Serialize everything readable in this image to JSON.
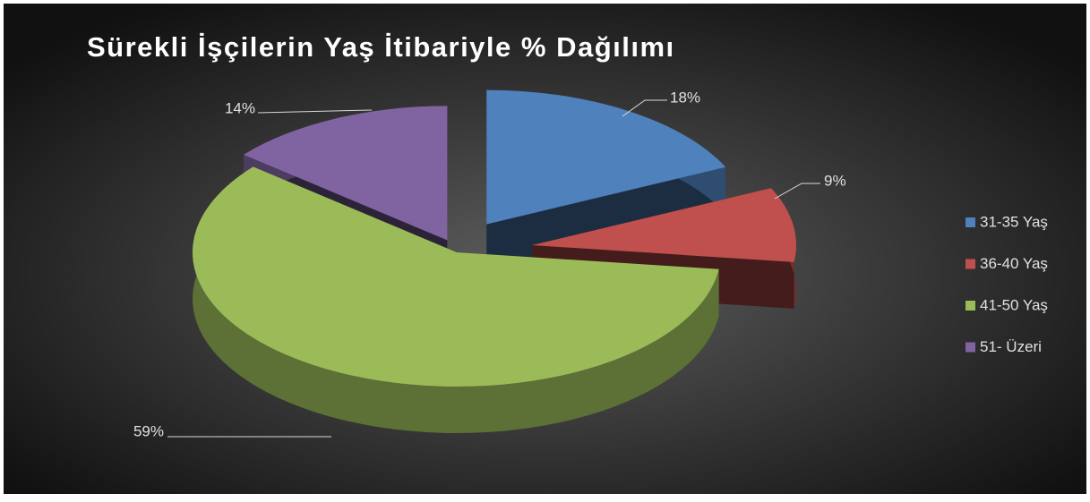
{
  "chart_data": {
    "type": "pie",
    "title": "Sürekli İşçilerin Yaş İtibariyle % Dağılımı",
    "categories": [
      "31-35 Yaş",
      "36-40 Yaş",
      "41-50 Yaş",
      "51- Üzeri"
    ],
    "values": [
      18,
      9,
      59,
      14
    ],
    "value_labels": [
      "18%",
      "9%",
      "59%",
      "14%"
    ],
    "colors": [
      "#4f81bd",
      "#c0504d",
      "#9bbb59",
      "#8064a2"
    ]
  }
}
